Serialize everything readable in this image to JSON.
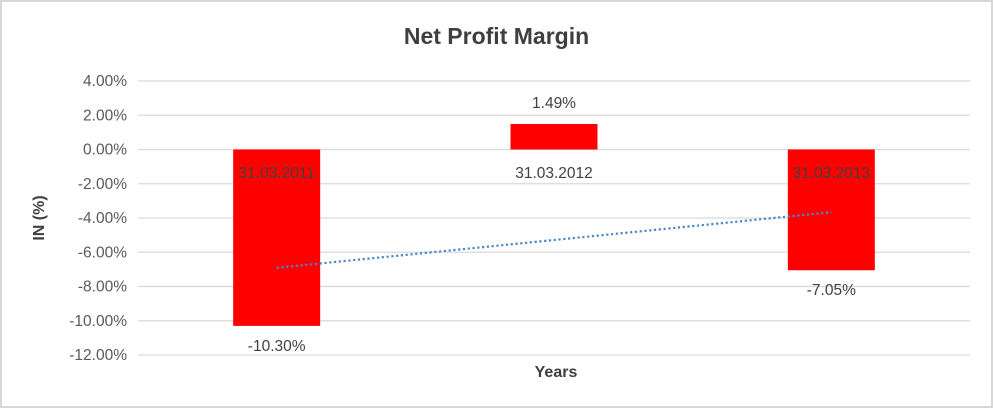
{
  "chart_data": {
    "type": "bar",
    "title": "Net Profit Margin",
    "xlabel": "Years",
    "ylabel": "IN (%)",
    "categories": [
      "31.03.2011",
      "31.03.2012",
      "31.03.2013"
    ],
    "values": [
      -10.3,
      1.49,
      -7.05
    ],
    "data_labels": [
      "-10.30%",
      "1.49%",
      "-7.05%"
    ],
    "ylim": [
      -12,
      4
    ],
    "ytick_step": 2,
    "ytick_labels": [
      "4.00%",
      "2.00%",
      "0.00%",
      "-2.00%",
      "-4.00%",
      "-6.00%",
      "-8.00%",
      "-10.00%",
      "-12.00%"
    ],
    "grid": true,
    "legend": false,
    "bar_color": "#ff0000",
    "label_color": "#404040",
    "tick_color": "#595959",
    "gridline_color": "#d9d9d9",
    "trendline": {
      "type": "linear",
      "style": "dotted",
      "color": "#4a86c8",
      "start_value": -6.91,
      "end_value": -3.66
    }
  }
}
